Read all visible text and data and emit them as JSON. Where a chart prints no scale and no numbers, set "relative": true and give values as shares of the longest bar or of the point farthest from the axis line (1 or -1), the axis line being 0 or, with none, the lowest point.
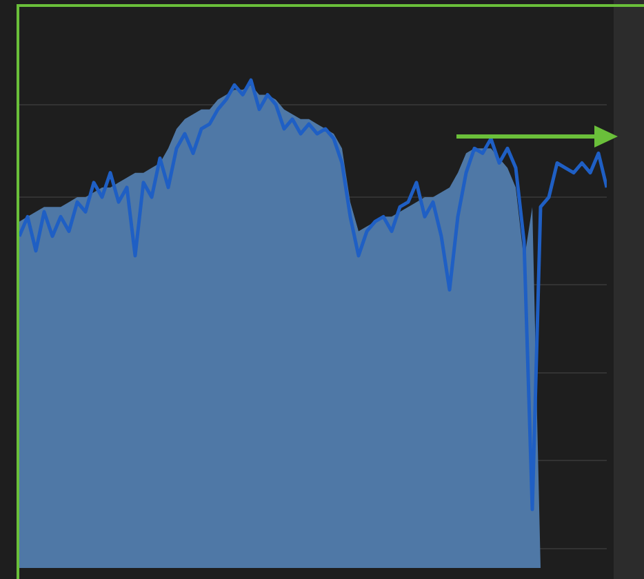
{
  "chart_data": {
    "type": "area",
    "relative": true,
    "grid": "y",
    "categories": [
      null,
      null,
      null,
      null,
      null,
      null,
      null,
      null,
      null,
      null,
      null,
      null,
      null,
      null,
      null,
      null,
      null,
      null,
      null,
      null,
      null,
      null,
      null,
      null,
      null,
      null,
      null,
      null,
      null,
      null,
      null,
      null,
      null,
      null,
      null,
      null,
      null,
      null,
      null,
      null,
      null,
      null,
      null,
      null,
      null,
      null,
      null,
      null,
      null,
      null,
      null,
      null,
      null,
      null,
      null,
      null,
      null,
      null,
      null,
      null,
      null,
      null,
      null,
      null,
      null,
      null,
      null,
      null,
      null,
      null,
      null,
      null
    ],
    "series": [
      {
        "color": "#4f78a6",
        "values": [
          0.71,
          0.72,
          0.73,
          0.74,
          0.74,
          0.74,
          0.75,
          0.76,
          0.76,
          0.77,
          0.78,
          0.78,
          0.79,
          0.8,
          0.81,
          0.81,
          0.82,
          0.83,
          0.86,
          0.9,
          0.92,
          0.93,
          0.94,
          0.94,
          0.96,
          0.97,
          0.98,
          0.98,
          0.99,
          0.97,
          0.97,
          0.96,
          0.94,
          0.93,
          0.92,
          0.92,
          0.91,
          0.9,
          0.89,
          0.86,
          0.75,
          0.69,
          0.7,
          0.71,
          0.72,
          0.72,
          0.73,
          0.74,
          0.75,
          0.76,
          0.76,
          0.77,
          0.78,
          0.81,
          0.85,
          0.86,
          0.86,
          0.86,
          0.84,
          0.82,
          0.78,
          0.63,
          0.74,
          0,
          null,
          null,
          null,
          null,
          null,
          null,
          null,
          null
        ]
      },
      {
        "type": "line",
        "color": "#1f5fc4",
        "values": [
          0.68,
          0.72,
          0.65,
          0.73,
          0.68,
          0.72,
          0.69,
          0.75,
          0.73,
          0.79,
          0.76,
          0.81,
          0.75,
          0.78,
          0.64,
          0.79,
          0.76,
          0.84,
          0.78,
          0.86,
          0.89,
          0.85,
          0.9,
          0.91,
          0.94,
          0.96,
          0.99,
          0.97,
          1,
          0.94,
          0.97,
          0.95,
          0.9,
          0.92,
          0.89,
          0.91,
          0.89,
          0.9,
          0.88,
          0.83,
          0.72,
          0.64,
          0.69,
          0.71,
          0.72,
          0.69,
          0.74,
          0.75,
          0.79,
          0.72,
          0.75,
          0.68,
          0.57,
          0.72,
          0.81,
          0.86,
          0.85,
          0.88,
          0.83,
          0.86,
          0.82,
          0.67,
          0.12,
          0.74,
          0.76,
          0.83,
          0.82,
          0.81,
          0.83,
          0.81,
          0.85,
          0.78
        ]
      }
    ]
  }
}
